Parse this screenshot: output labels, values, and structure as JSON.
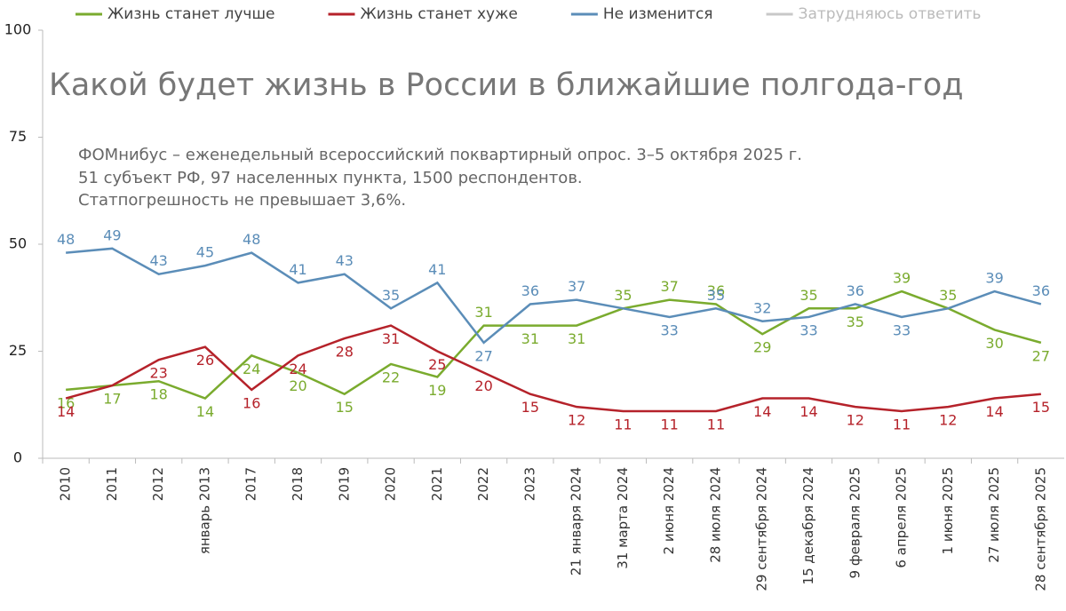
{
  "chart_data": {
    "type": "line",
    "title": "Какой будет жизнь в России в ближайшие полгода-год",
    "subtitle": [
      "ФОМнибус – еженедельный всероссийский поквартирный опрос. 3–5 октября 2025 г.",
      "51 субъект РФ, 97 населенных пункта, 1500 респондентов.",
      "Статпогрешность не превышает 3,6%."
    ],
    "categories": [
      "2010",
      "2011",
      "2012",
      "январь 2013",
      "2017",
      "2018",
      "2019",
      "2020",
      "2021",
      "2022",
      "2023",
      "21 января 2024",
      "31 марта 2024",
      "2 июня 2024",
      "28 июля 2024",
      "29 сентября 2024",
      "15 декабря 2024",
      "9 февраля 2025",
      "6 апреля 2025",
      "1 июня 2025",
      "27 июля 2025",
      "28 сентября 2025"
    ],
    "series": [
      {
        "name": "Жизнь станет лучше",
        "color": "#7aab2e",
        "values": [
          16,
          17,
          18,
          14,
          24,
          20,
          15,
          22,
          19,
          31,
          31,
          31,
          35,
          37,
          36,
          29,
          35,
          35,
          39,
          35,
          30,
          27
        ],
        "value_labels": [
          "16",
          "17",
          "18",
          "14",
          "24",
          "20",
          "15",
          "22",
          "19",
          "31",
          "31",
          "31",
          "35",
          "37",
          "36",
          "29",
          "35",
          "35",
          "39",
          "35",
          "30",
          "27"
        ]
      },
      {
        "name": "Жизнь станет хуже",
        "color": "#b5222a",
        "values": [
          14,
          17,
          23,
          26,
          16,
          24,
          28,
          31,
          25,
          20,
          15,
          12,
          11,
          11,
          11,
          14,
          14,
          12,
          11,
          12,
          14,
          15
        ],
        "value_labels": [
          "14",
          null,
          "23",
          "26",
          "16",
          "24",
          "28",
          "31",
          "25",
          "20",
          "15",
          "12",
          "11",
          "11",
          "11",
          "14",
          "14",
          "12",
          "11",
          "12",
          "14",
          "15"
        ]
      },
      {
        "name": "Не изменится",
        "color": "#5b8db8",
        "values": [
          48,
          49,
          43,
          45,
          48,
          41,
          43,
          35,
          41,
          27,
          36,
          37,
          35,
          33,
          35,
          32,
          33,
          36,
          33,
          35,
          39,
          36
        ],
        "value_labels": [
          "48",
          "49",
          "43",
          "45",
          "48",
          "41",
          "43",
          "35",
          "41",
          "27",
          "36",
          "37",
          null,
          "33",
          "35",
          "32",
          "33",
          "36",
          "33",
          null,
          "39",
          "36"
        ]
      },
      {
        "name": "Затрудняюсь ответить",
        "color": "#c8c8c8",
        "values": [
          null,
          null,
          null,
          null,
          null,
          null,
          null,
          null,
          null,
          null,
          null,
          null,
          null,
          null,
          null,
          null,
          null,
          null,
          null,
          null,
          null,
          null
        ]
      }
    ],
    "ylim": [
      0,
      100
    ],
    "yticks": [
      0,
      25,
      50,
      75,
      100
    ]
  }
}
